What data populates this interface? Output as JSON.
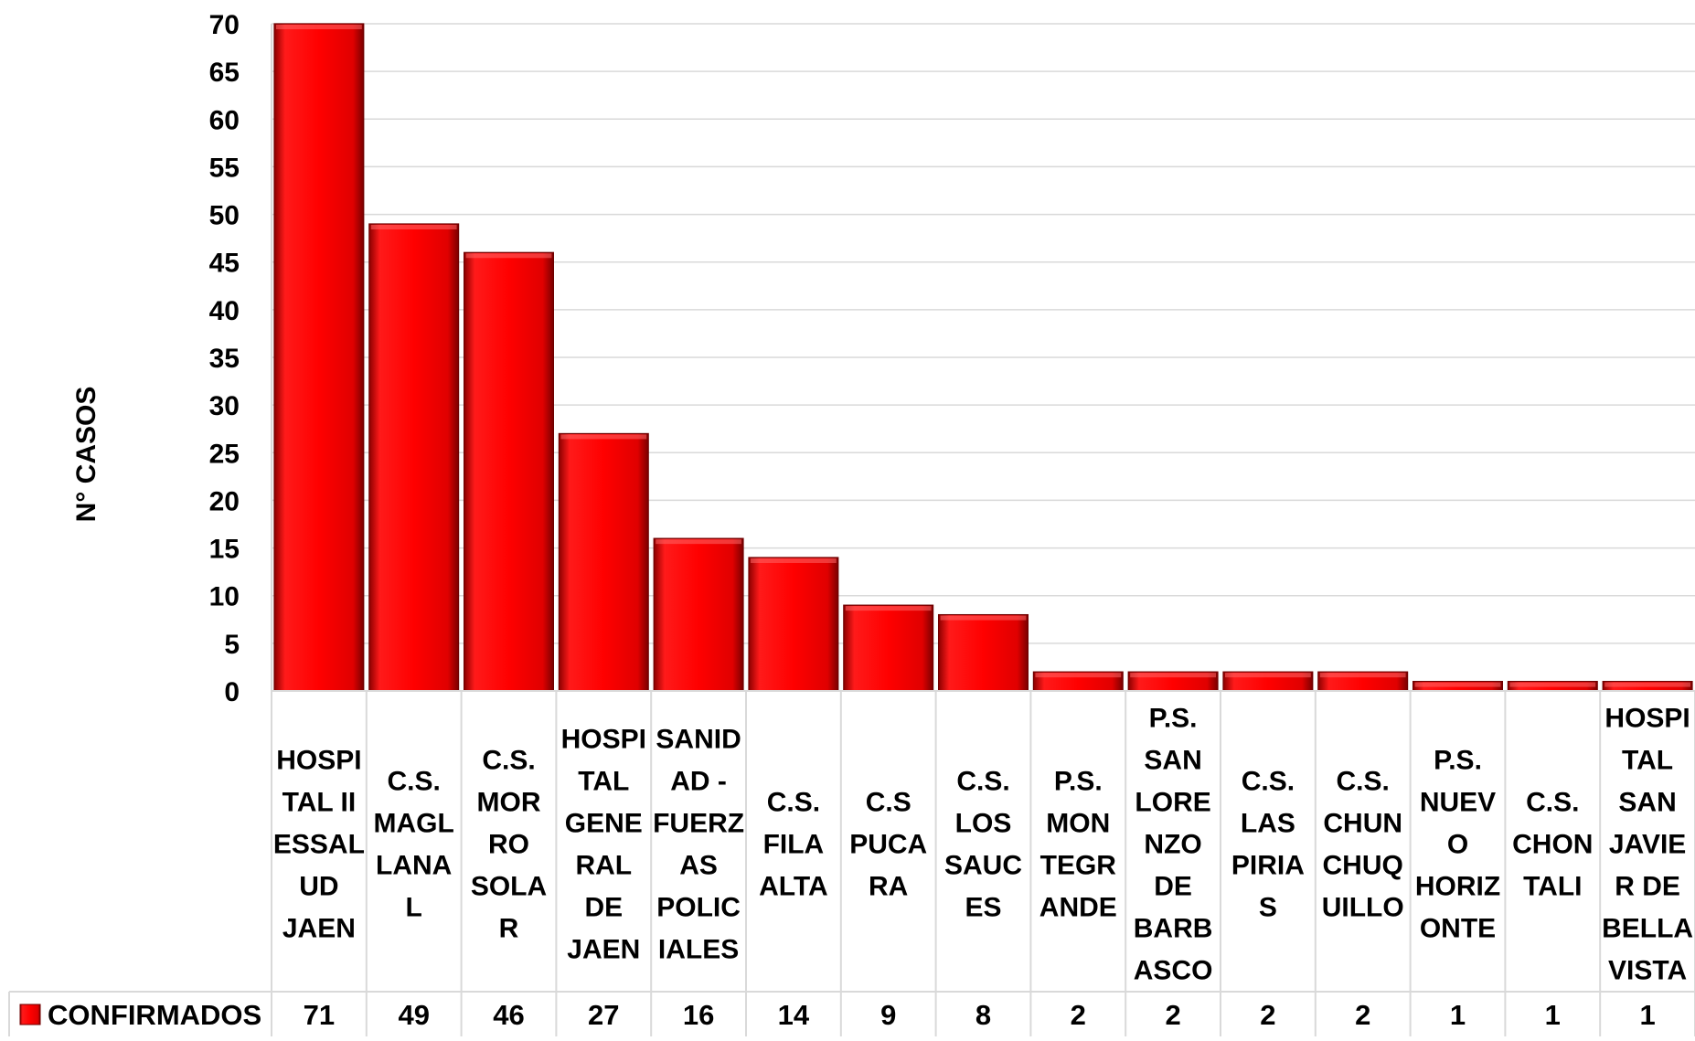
{
  "chart_data": {
    "type": "bar",
    "title": "",
    "xlabel": "",
    "ylabel": "N°  CASOS",
    "ylim": [
      0,
      70
    ],
    "y_ticks": [
      0,
      5,
      10,
      15,
      20,
      25,
      30,
      35,
      40,
      45,
      50,
      55,
      60,
      65,
      70
    ],
    "grid": true,
    "legend": "data-table-left",
    "categories": [
      "HOSPITAL II ESSALUD JAEN",
      "C.S. MAGLLANAL",
      "C.S. MORRO SOLAR",
      "HOSPITAL GENERAL DE JAEN",
      "SANIDAD - FUERZAS POLICIALES",
      "C.S. FILA ALTA",
      "C.S PUCARA",
      "C.S. LOS SAUCES",
      "P.S. MONTEGRANDE",
      "P.S. SAN LORENZO DE BARBASCO",
      "C.S. LAS PIRIAS",
      "C.S. CHUNCHUQUILLO",
      "P.S. NUEVO HORIZONTE",
      "C.S. CHONTALI",
      "HOSPITAL SAN JAVIER DE BELLAVISTA"
    ],
    "category_lines": [
      [
        "HOSPI",
        "TAL II",
        "ESSAL",
        "UD",
        "JAEN"
      ],
      [
        "C.S.",
        "MAGL",
        "LANA",
        "L"
      ],
      [
        "C.S.",
        "MOR",
        "RO",
        "SOLA",
        "R"
      ],
      [
        "HOSPI",
        "TAL",
        "GENE",
        "RAL",
        "DE",
        "JAEN"
      ],
      [
        "SANID",
        "AD -",
        "FUERZ",
        "AS",
        "POLIC",
        "IALES"
      ],
      [
        "C.S.",
        "FILA",
        "ALTA"
      ],
      [
        "C.S",
        "PUCA",
        "RA"
      ],
      [
        "C.S.",
        "LOS",
        "SAUC",
        "ES"
      ],
      [
        "P.S.",
        "MON",
        "TEGR",
        "ANDE"
      ],
      [
        "P.S.",
        "SAN",
        "LORE",
        "NZO",
        "DE",
        "BARB",
        "ASCO"
      ],
      [
        "C.S.",
        "LAS",
        "PIRIA",
        "S"
      ],
      [
        "C.S.",
        "CHUN",
        "CHUQ",
        "UILLO"
      ],
      [
        "P.S.",
        "NUEV",
        "O",
        "HORIZ",
        "ONTE"
      ],
      [
        "C.S.",
        "CHON",
        "TALI"
      ],
      [
        "HOSPI",
        "TAL",
        "SAN",
        "JAVIE",
        "R DE",
        "BELLA",
        "VISTA"
      ]
    ],
    "series": [
      {
        "name": "CONFIRMADOS",
        "color": "#ff0000",
        "values": [
          71,
          49,
          46,
          27,
          16,
          14,
          9,
          8,
          2,
          2,
          2,
          2,
          1,
          1,
          1
        ]
      }
    ]
  }
}
